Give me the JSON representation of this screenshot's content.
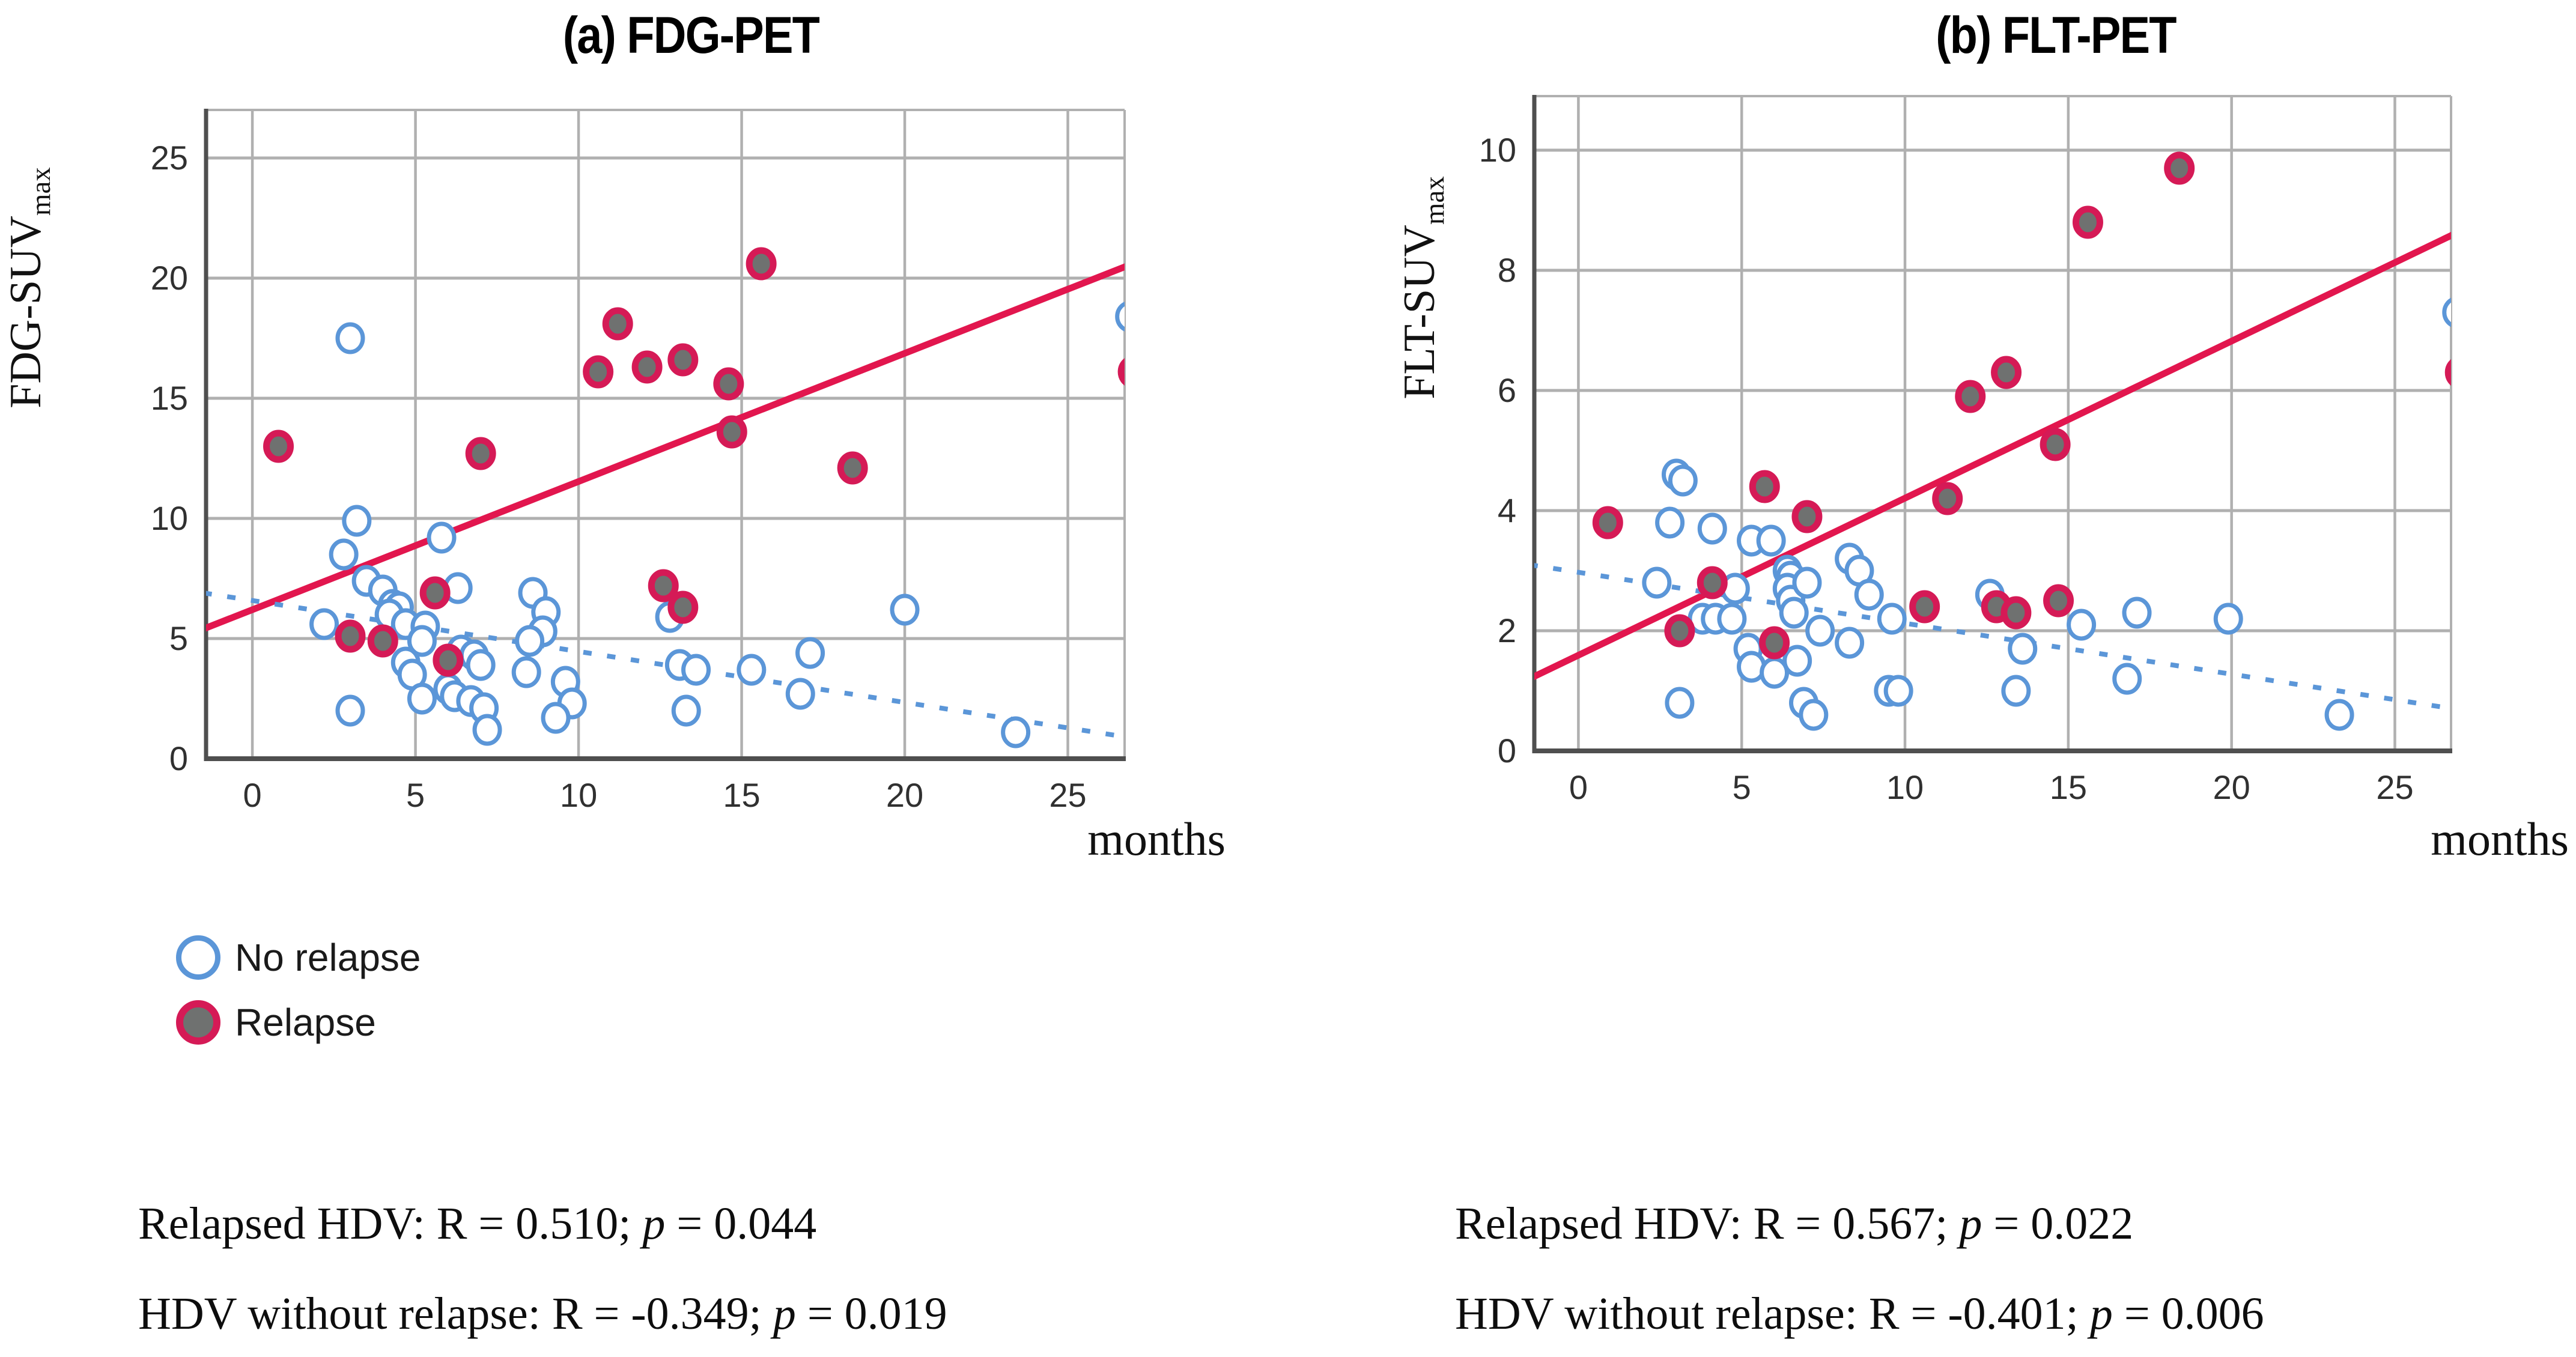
{
  "figure": {
    "panels": [
      {
        "id": "fdg",
        "title": "(a) FDG-PET",
        "y_axis_label": "FDG-SUV",
        "y_axis_label_subscript": "max",
        "x_axis_label": "months"
      },
      {
        "id": "flt",
        "title": "(b) FLT-PET",
        "y_axis_label": "FLT-SUV",
        "y_axis_label_subscript": "max",
        "x_axis_label": "months"
      }
    ],
    "legend": {
      "items": [
        {
          "label": "No relapse",
          "marker": "open-circle",
          "stroke": "#5b96d8",
          "fill": "#ffffff"
        },
        {
          "label": "Relapse",
          "marker": "filled-circle",
          "stroke": "#d51a56",
          "fill": "#6f7170"
        }
      ]
    },
    "stats_blocks": [
      {
        "lines": [
          {
            "pre": "Relapsed HDV: R = 0.510; ",
            "p": "p",
            "post": " = 0.044"
          },
          {
            "pre": "HDV without relapse: R = -0.349; ",
            "p": "p",
            "post": " = 0.019"
          }
        ]
      },
      {
        "lines": [
          {
            "pre": "Relapsed HDV: R = 0.567; ",
            "p": "p",
            "post": " = 0.022"
          },
          {
            "pre": "HDV without relapse: R = -0.401; ",
            "p": "p",
            "post": " = 0.006"
          }
        ]
      }
    ],
    "colors": {
      "no_relapse_stroke": "#5b96d8",
      "relapse_ring": "#d51a56",
      "relapse_fill": "#6f7170",
      "trend_relapse": "#e2164e",
      "trend_no_relapse": "#5b96d8",
      "gridline": "#b0b0b0",
      "axis": "#4f4f4f",
      "tick_text": "#303030"
    }
  },
  "chart_data": [
    {
      "type": "scatter",
      "title": "(a) FDG-PET",
      "xlabel": "months",
      "ylabel": "FDG-SUVmax",
      "xlim": [
        -1.42,
        26.74
      ],
      "ylim": [
        0,
        27.0
      ],
      "x_ticks": [
        0,
        5,
        10,
        15,
        20,
        25
      ],
      "y_ticks": [
        0,
        5,
        10,
        15,
        20,
        25
      ],
      "grid": true,
      "legend_position": "below-left",
      "series": [
        {
          "name": "No relapse",
          "marker": "open-circle",
          "color": "#5b96d8",
          "fill": "#ffffff",
          "points": [
            [
              3.0,
              17.5
            ],
            [
              3.2,
              9.9
            ],
            [
              2.8,
              8.5
            ],
            [
              5.8,
              9.2
            ],
            [
              3.5,
              7.4
            ],
            [
              4.0,
              7.0
            ],
            [
              6.3,
              7.1
            ],
            [
              8.6,
              6.9
            ],
            [
              9.0,
              6.1
            ],
            [
              8.9,
              5.3
            ],
            [
              8.5,
              4.9
            ],
            [
              2.2,
              5.6
            ],
            [
              4.3,
              6.4
            ],
            [
              4.5,
              6.3
            ],
            [
              4.2,
              6.0
            ],
            [
              4.7,
              5.6
            ],
            [
              5.3,
              5.5
            ],
            [
              5.2,
              4.9
            ],
            [
              4.7,
              4.0
            ],
            [
              4.9,
              3.5
            ],
            [
              6.4,
              4.5
            ],
            [
              6.8,
              4.3
            ],
            [
              7.0,
              3.9
            ],
            [
              6.0,
              2.9
            ],
            [
              6.2,
              2.6
            ],
            [
              5.2,
              2.5
            ],
            [
              6.7,
              2.4
            ],
            [
              7.1,
              2.1
            ],
            [
              3.0,
              2.0
            ],
            [
              7.2,
              1.2
            ],
            [
              8.4,
              3.6
            ],
            [
              9.6,
              3.2
            ],
            [
              9.8,
              2.3
            ],
            [
              9.3,
              1.7
            ],
            [
              13.1,
              3.9
            ],
            [
              13.6,
              3.7
            ],
            [
              15.3,
              3.7
            ],
            [
              17.1,
              4.4
            ],
            [
              16.8,
              2.7
            ],
            [
              13.3,
              2.0
            ],
            [
              12.8,
              5.9
            ],
            [
              20.0,
              6.2
            ],
            [
              23.4,
              1.1
            ],
            [
              26.9,
              18.4
            ]
          ]
        },
        {
          "name": "Relapse",
          "marker": "filled-circle",
          "color": "#d51a56",
          "fill": "#6f7170",
          "points": [
            [
              0.8,
              13.0
            ],
            [
              3.0,
              5.1
            ],
            [
              4.0,
              4.9
            ],
            [
              5.6,
              6.9
            ],
            [
              6.0,
              4.1
            ],
            [
              7.0,
              12.7
            ],
            [
              10.6,
              16.1
            ],
            [
              11.2,
              18.1
            ],
            [
              12.1,
              16.3
            ],
            [
              13.2,
              16.6
            ],
            [
              12.6,
              7.2
            ],
            [
              13.2,
              6.3
            ],
            [
              14.6,
              15.6
            ],
            [
              14.7,
              13.6
            ],
            [
              15.6,
              20.6
            ],
            [
              18.4,
              12.1
            ],
            [
              27.0,
              16.1
            ]
          ]
        }
      ],
      "trend_lines": [
        {
          "series": "Relapse",
          "style": "solid",
          "color": "#e2164e",
          "from": [
            -1.5,
            5.4
          ],
          "to": [
            26.8,
            20.5
          ]
        },
        {
          "series": "No relapse",
          "style": "dashed",
          "color": "#5b96d8",
          "from": [
            -1.5,
            6.9
          ],
          "to": [
            26.8,
            0.9
          ]
        }
      ]
    },
    {
      "type": "scatter",
      "title": "(b) FLT-PET",
      "xlabel": "months",
      "ylabel": "FLT-SUVmax",
      "xlim": [
        -1.35,
        26.72
      ],
      "ylim": [
        0,
        10.9
      ],
      "x_ticks": [
        0,
        5,
        10,
        15,
        20,
        25
      ],
      "y_ticks": [
        0,
        2,
        4,
        6,
        8,
        10
      ],
      "grid": true,
      "legend_position": "none",
      "series": [
        {
          "name": "No relapse",
          "marker": "open-circle",
          "color": "#5b96d8",
          "fill": "#ffffff",
          "points": [
            [
              3.0,
              4.6
            ],
            [
              3.2,
              4.5
            ],
            [
              2.8,
              3.8
            ],
            [
              4.1,
              3.7
            ],
            [
              5.3,
              3.5
            ],
            [
              5.9,
              3.5
            ],
            [
              2.4,
              2.8
            ],
            [
              4.8,
              2.7
            ],
            [
              6.4,
              3.0
            ],
            [
              6.5,
              2.9
            ],
            [
              6.4,
              2.7
            ],
            [
              6.5,
              2.5
            ],
            [
              6.6,
              2.3
            ],
            [
              7.0,
              2.8
            ],
            [
              3.8,
              2.2
            ],
            [
              4.2,
              2.2
            ],
            [
              4.7,
              2.2
            ],
            [
              5.2,
              1.7
            ],
            [
              5.3,
              1.4
            ],
            [
              6.0,
              1.3
            ],
            [
              6.7,
              1.5
            ],
            [
              6.9,
              0.8
            ],
            [
              7.2,
              0.6
            ],
            [
              3.1,
              0.8
            ],
            [
              7.4,
              2.0
            ],
            [
              8.3,
              3.2
            ],
            [
              8.6,
              3.0
            ],
            [
              8.9,
              2.6
            ],
            [
              8.3,
              1.8
            ],
            [
              9.6,
              2.2
            ],
            [
              9.5,
              1.0
            ],
            [
              9.8,
              1.0
            ],
            [
              12.6,
              2.6
            ],
            [
              13.6,
              1.7
            ],
            [
              13.4,
              1.0
            ],
            [
              15.4,
              2.1
            ],
            [
              16.8,
              1.2
            ],
            [
              17.1,
              2.3
            ],
            [
              19.9,
              2.2
            ],
            [
              23.3,
              0.6
            ],
            [
              26.9,
              7.3
            ]
          ]
        },
        {
          "name": "Relapse",
          "marker": "filled-circle",
          "color": "#d51a56",
          "fill": "#6f7170",
          "points": [
            [
              0.9,
              3.8
            ],
            [
              3.1,
              2.0
            ],
            [
              4.1,
              2.8
            ],
            [
              5.7,
              4.4
            ],
            [
              6.0,
              1.8
            ],
            [
              7.0,
              3.9
            ],
            [
              10.6,
              2.4
            ],
            [
              11.3,
              4.2
            ],
            [
              12.0,
              5.9
            ],
            [
              12.8,
              2.4
            ],
            [
              13.1,
              6.3
            ],
            [
              13.4,
              2.3
            ],
            [
              14.6,
              5.1
            ],
            [
              14.7,
              2.5
            ],
            [
              15.6,
              8.8
            ],
            [
              18.4,
              9.7
            ],
            [
              27.0,
              6.3
            ]
          ]
        }
      ],
      "trend_lines": [
        {
          "series": "Relapse",
          "style": "solid",
          "color": "#e2164e",
          "from": [
            -1.5,
            1.2
          ],
          "to": [
            26.8,
            8.6
          ]
        },
        {
          "series": "No relapse",
          "style": "dashed",
          "color": "#5b96d8",
          "from": [
            -1.5,
            3.1
          ],
          "to": [
            26.8,
            0.7
          ]
        }
      ]
    }
  ]
}
